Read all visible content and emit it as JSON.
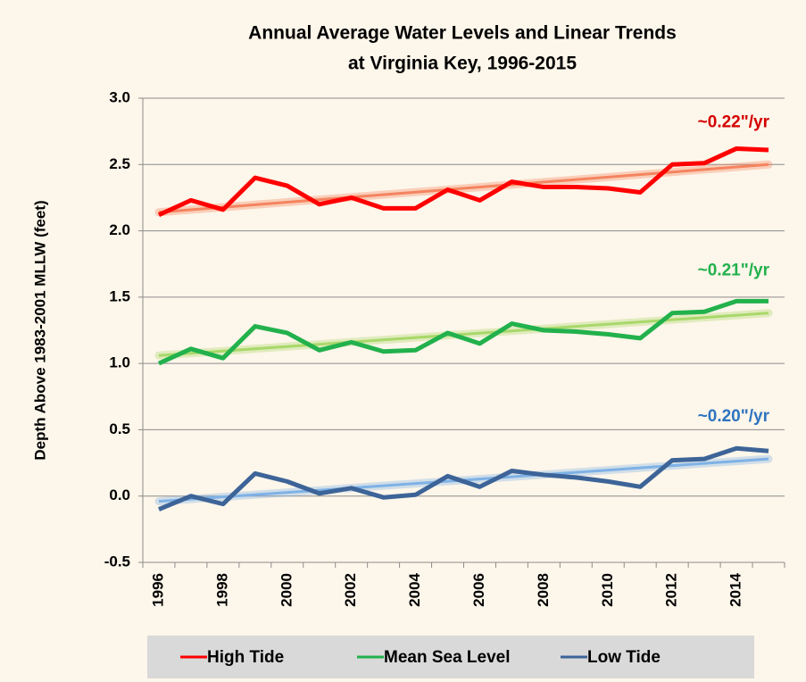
{
  "chart_data": {
    "type": "line",
    "title": [
      "Annual Average Water Levels and Linear Trends",
      "at Virginia Key, 1996-2015"
    ],
    "y_label": "Depth Above 1983-2001 MLLW (feet)",
    "categories": [
      "1996",
      null,
      "1998",
      null,
      "2000",
      null,
      "2002",
      null,
      "2004",
      null,
      "2006",
      null,
      "2008",
      null,
      "2010",
      null,
      "2012",
      null,
      "2014",
      null
    ],
    "ylim": [
      -0.5,
      3.0
    ],
    "yticks": [
      {
        "value": -0.5,
        "label": "-0.5"
      },
      {
        "value": 0,
        "label": "0.0"
      },
      {
        "value": 0.5,
        "label": "0.5"
      },
      {
        "value": 1,
        "label": "1.0"
      },
      {
        "value": 1.5,
        "label": "1.5"
      },
      {
        "value": 2,
        "label": "2.0"
      },
      {
        "value": 2.5,
        "label": "2.5"
      },
      {
        "value": 3,
        "label": "3.0"
      }
    ],
    "grid": true,
    "legend": "bottom",
    "series": [
      {
        "name": "High Tide",
        "color": "#ff0000",
        "trend_color": "#f4845f",
        "annotation": "~0.22\"/yr",
        "annotation_color": "#d40000",
        "trend": [
          2.14,
          2.5
        ],
        "values": [
          2.12,
          2.23,
          2.16,
          2.4,
          2.34,
          2.2,
          2.25,
          2.17,
          2.17,
          2.31,
          2.23,
          2.37,
          2.33,
          2.33,
          2.32,
          2.29,
          2.5,
          2.51,
          2.62,
          2.61
        ]
      },
      {
        "name": "Mean Sea Level",
        "color": "#22b14c",
        "trend_color": "#a8d86a",
        "annotation": "~0.21\"/yr",
        "annotation_color": "#22b14c",
        "trend": [
          1.06,
          1.38
        ],
        "values": [
          1.0,
          1.11,
          1.04,
          1.28,
          1.23,
          1.1,
          1.16,
          1.09,
          1.1,
          1.23,
          1.15,
          1.3,
          1.25,
          1.24,
          1.22,
          1.19,
          1.38,
          1.39,
          1.47,
          1.47
        ]
      },
      {
        "name": "Low Tide",
        "color": "#3d6498",
        "trend_color": "#7fb2e6",
        "annotation": "~0.20\"/yr",
        "annotation_color": "#2e74c0",
        "trend": [
          -0.04,
          0.28
        ],
        "values": [
          -0.1,
          0.0,
          -0.06,
          0.17,
          0.11,
          0.02,
          0.06,
          -0.01,
          0.01,
          0.15,
          0.07,
          0.19,
          0.16,
          0.14,
          0.11,
          0.07,
          0.27,
          0.28,
          0.36,
          0.34
        ]
      }
    ]
  }
}
